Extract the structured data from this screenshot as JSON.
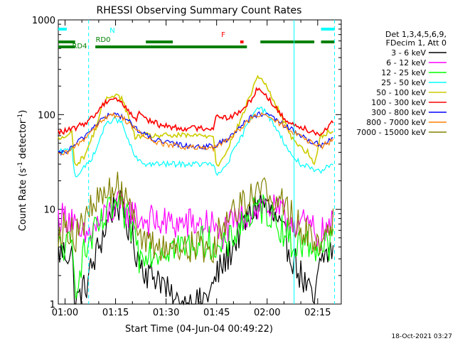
{
  "chart_data": {
    "type": "line",
    "title": "RHESSI Observing Summary Count Rates",
    "xlabel": "Start Time (04-Jun-04 00:49:22)",
    "ylabel_main": "Count Rate (s",
    "ylabel_sup1": "-1",
    "ylabel_mid": " detector",
    "ylabel_sup2": "-1",
    "ylabel_end": ")",
    "footer": "18-Oct-2021 03:27",
    "yscale": "log",
    "ylim": [
      1,
      1000
    ],
    "xlim_minutes": [
      -2,
      50
    ],
    "x_unit": "minutes after 01:00",
    "x_ticks": [
      {
        "t": 0,
        "label": "01:00"
      },
      {
        "t": 15,
        "label": "01:15"
      },
      {
        "t": 30,
        "label": "01:30"
      },
      {
        "t": 45,
        "label": "01:45"
      },
      {
        "t": 60,
        "label": "02:00"
      },
      {
        "t": 75,
        "label": "02:15"
      }
    ],
    "y_ticks": [
      {
        "v": 1,
        "label": "1"
      },
      {
        "v": 10,
        "label": "10"
      },
      {
        "v": 100,
        "label": "100"
      },
      {
        "v": 1000,
        "label": "1000"
      }
    ],
    "legend": {
      "header": [
        "Det 1,3,4,5,6,9,",
        "FDecim 1, Att 0"
      ],
      "placement": "right"
    },
    "series": [
      {
        "name": "3 - 6 keV",
        "color": "#000000",
        "points": [
          [
            -2,
            3.5
          ],
          [
            2,
            3.5
          ],
          [
            3,
            1
          ],
          [
            6,
            1.5
          ],
          [
            10,
            4
          ],
          [
            13,
            8
          ],
          [
            15,
            12
          ],
          [
            17,
            10
          ],
          [
            19,
            6
          ],
          [
            22,
            3
          ],
          [
            25,
            2
          ],
          [
            28,
            2
          ],
          [
            32,
            1
          ],
          [
            40,
            1
          ],
          [
            44,
            1.5
          ],
          [
            45,
            2
          ],
          [
            48,
            3
          ],
          [
            52,
            6
          ],
          [
            56,
            10
          ],
          [
            58,
            12
          ],
          [
            60,
            11
          ],
          [
            62,
            8
          ],
          [
            65,
            5
          ],
          [
            67,
            3.5
          ],
          [
            70,
            2
          ],
          [
            74,
            1
          ],
          [
            76,
            3
          ],
          [
            80,
            4
          ]
        ]
      },
      {
        "name": "6 - 12 keV",
        "color": "#ff00ff",
        "points": [
          [
            -2,
            8
          ],
          [
            2,
            8.5
          ],
          [
            4,
            5
          ],
          [
            6,
            5
          ],
          [
            10,
            7
          ],
          [
            13,
            9
          ],
          [
            15,
            11
          ],
          [
            17,
            10
          ],
          [
            20,
            9
          ],
          [
            22,
            8
          ],
          [
            26,
            7.5
          ],
          [
            30,
            7
          ],
          [
            36,
            7
          ],
          [
            40,
            7
          ],
          [
            44,
            7
          ],
          [
            45,
            5
          ],
          [
            48,
            6
          ],
          [
            52,
            8
          ],
          [
            56,
            10
          ],
          [
            59,
            11
          ],
          [
            62,
            9.5
          ],
          [
            66,
            8
          ],
          [
            70,
            7
          ],
          [
            73,
            6.5
          ],
          [
            75,
            5
          ],
          [
            80,
            7
          ]
        ]
      },
      {
        "name": "12 - 25 keV",
        "color": "#00ff00",
        "points": [
          [
            -2,
            4
          ],
          [
            2,
            4
          ],
          [
            3,
            1.5
          ],
          [
            5,
            3
          ],
          [
            8,
            5
          ],
          [
            11,
            7
          ],
          [
            13,
            9
          ],
          [
            15,
            11
          ],
          [
            17,
            9
          ],
          [
            19,
            7
          ],
          [
            21,
            5.5
          ],
          [
            22,
            3
          ],
          [
            24,
            4
          ],
          [
            26,
            3.5
          ],
          [
            30,
            4
          ],
          [
            36,
            4
          ],
          [
            40,
            4.5
          ],
          [
            44,
            4.5
          ],
          [
            45,
            3.5
          ],
          [
            48,
            4
          ],
          [
            52,
            7
          ],
          [
            56,
            9
          ],
          [
            59,
            10.5
          ],
          [
            62,
            8
          ],
          [
            65,
            6
          ],
          [
            68,
            4
          ],
          [
            70,
            4.5
          ],
          [
            74,
            4
          ],
          [
            76,
            4
          ],
          [
            80,
            4.5
          ]
        ]
      },
      {
        "name": "25 - 50 keV",
        "color": "#00ffff",
        "points": [
          [
            -2,
            40
          ],
          [
            1,
            42
          ],
          [
            2,
            45
          ],
          [
            3,
            22
          ],
          [
            6,
            28
          ],
          [
            9,
            40
          ],
          [
            11,
            65
          ],
          [
            13,
            85
          ],
          [
            15,
            90
          ],
          [
            17,
            80
          ],
          [
            19,
            50
          ],
          [
            21,
            35
          ],
          [
            22,
            32
          ],
          [
            24,
            30
          ],
          [
            28,
            30
          ],
          [
            34,
            30
          ],
          [
            40,
            30
          ],
          [
            44,
            30
          ],
          [
            45,
            22
          ],
          [
            48,
            30
          ],
          [
            52,
            55
          ],
          [
            55,
            90
          ],
          [
            57,
            125
          ],
          [
            59,
            110
          ],
          [
            61,
            90
          ],
          [
            64,
            60
          ],
          [
            67,
            38
          ],
          [
            70,
            30
          ],
          [
            72,
            28
          ],
          [
            74,
            25
          ],
          [
            76,
            25
          ],
          [
            78,
            28
          ],
          [
            80,
            32
          ]
        ]
      },
      {
        "name": "50 - 100 keV",
        "color": "#cccc00",
        "points": [
          [
            -2,
            55
          ],
          [
            1,
            60
          ],
          [
            2,
            65
          ],
          [
            3,
            28
          ],
          [
            6,
            38
          ],
          [
            9,
            70
          ],
          [
            11,
            120
          ],
          [
            13,
            155
          ],
          [
            15,
            165
          ],
          [
            17,
            145
          ],
          [
            19,
            90
          ],
          [
            21,
            55
          ],
          [
            22,
            60
          ],
          [
            24,
            60
          ],
          [
            28,
            60
          ],
          [
            34,
            60
          ],
          [
            40,
            60
          ],
          [
            44,
            60
          ],
          [
            45,
            28
          ],
          [
            48,
            42
          ],
          [
            52,
            85
          ],
          [
            55,
            160
          ],
          [
            57,
            250
          ],
          [
            59,
            230
          ],
          [
            61,
            160
          ],
          [
            64,
            100
          ],
          [
            67,
            60
          ],
          [
            70,
            45
          ],
          [
            72,
            40
          ],
          [
            74,
            30
          ],
          [
            76,
            60
          ],
          [
            78,
            65
          ],
          [
            80,
            70
          ]
        ]
      },
      {
        "name": "100 - 300 keV",
        "color": "#ff0000",
        "points": [
          [
            -2,
            65
          ],
          [
            1,
            68
          ],
          [
            2,
            70
          ],
          [
            3,
            72
          ],
          [
            6,
            82
          ],
          [
            9,
            100
          ],
          [
            11,
            125
          ],
          [
            13,
            145
          ],
          [
            15,
            150
          ],
          [
            17,
            130
          ],
          [
            19,
            110
          ],
          [
            21,
            85
          ],
          [
            22,
            110
          ],
          [
            24,
            90
          ],
          [
            28,
            78
          ],
          [
            34,
            72
          ],
          [
            40,
            72
          ],
          [
            44,
            72
          ],
          [
            45,
            100
          ],
          [
            48,
            92
          ],
          [
            52,
            105
          ],
          [
            55,
            140
          ],
          [
            57,
            190
          ],
          [
            59,
            170
          ],
          [
            61,
            140
          ],
          [
            64,
            100
          ],
          [
            67,
            80
          ],
          [
            70,
            75
          ],
          [
            72,
            70
          ],
          [
            74,
            65
          ],
          [
            76,
            62
          ],
          [
            78,
            75
          ],
          [
            80,
            85
          ]
        ]
      },
      {
        "name": "300 - 800 keV",
        "color": "#0000ff",
        "points": [
          [
            -2,
            38
          ],
          [
            1,
            42
          ],
          [
            3,
            48
          ],
          [
            6,
            60
          ],
          [
            9,
            78
          ],
          [
            11,
            90
          ],
          [
            13,
            98
          ],
          [
            15,
            100
          ],
          [
            17,
            95
          ],
          [
            19,
            85
          ],
          [
            21,
            72
          ],
          [
            22,
            68
          ],
          [
            24,
            60
          ],
          [
            28,
            52
          ],
          [
            34,
            48
          ],
          [
            40,
            46
          ],
          [
            44,
            46
          ],
          [
            45,
            48
          ],
          [
            48,
            55
          ],
          [
            52,
            75
          ],
          [
            55,
            92
          ],
          [
            57,
            100
          ],
          [
            59,
            100
          ],
          [
            61,
            95
          ],
          [
            64,
            82
          ],
          [
            67,
            70
          ],
          [
            70,
            60
          ],
          [
            72,
            55
          ],
          [
            74,
            50
          ],
          [
            76,
            48
          ],
          [
            78,
            52
          ],
          [
            80,
            58
          ]
        ]
      },
      {
        "name": "800 - 7000 keV",
        "color": "#ff8000",
        "points": [
          [
            -2,
            37
          ],
          [
            1,
            40
          ],
          [
            3,
            46
          ],
          [
            6,
            57
          ],
          [
            9,
            75
          ],
          [
            11,
            88
          ],
          [
            13,
            96
          ],
          [
            15,
            98
          ],
          [
            17,
            93
          ],
          [
            19,
            82
          ],
          [
            21,
            70
          ],
          [
            22,
            65
          ],
          [
            24,
            57
          ],
          [
            28,
            50
          ],
          [
            34,
            46
          ],
          [
            40,
            44
          ],
          [
            44,
            44
          ],
          [
            45,
            46
          ],
          [
            48,
            53
          ],
          [
            52,
            72
          ],
          [
            55,
            90
          ],
          [
            57,
            98
          ],
          [
            59,
            98
          ],
          [
            61,
            92
          ],
          [
            64,
            80
          ],
          [
            67,
            68
          ],
          [
            70,
            58
          ],
          [
            72,
            53
          ],
          [
            74,
            48
          ],
          [
            76,
            46
          ],
          [
            78,
            50
          ],
          [
            80,
            55
          ]
        ]
      },
      {
        "name": "7000 - 15000 keV",
        "color": "#808000",
        "points": [
          [
            -2,
            6
          ],
          [
            2,
            6.5
          ],
          [
            3,
            5
          ],
          [
            5,
            7
          ],
          [
            8,
            10
          ],
          [
            11,
            14
          ],
          [
            13,
            16
          ],
          [
            15,
            17
          ],
          [
            17,
            16
          ],
          [
            19,
            13
          ],
          [
            21,
            10
          ],
          [
            22,
            5
          ],
          [
            24,
            4
          ],
          [
            28,
            4
          ],
          [
            34,
            4
          ],
          [
            40,
            4
          ],
          [
            44,
            4
          ],
          [
            45,
            5
          ],
          [
            48,
            8
          ],
          [
            52,
            12
          ],
          [
            56,
            15
          ],
          [
            59,
            16
          ],
          [
            62,
            14
          ],
          [
            65,
            11
          ],
          [
            68,
            8
          ],
          [
            70,
            6
          ],
          [
            73,
            5
          ],
          [
            75,
            4.5
          ],
          [
            78,
            6
          ],
          [
            80,
            8
          ]
        ]
      }
    ],
    "attenuator_bars": [
      {
        "label": "N",
        "color": "#00ffff",
        "row": 1,
        "segments": [
          [
            -2,
            0.5
          ],
          [
            76,
            80
          ]
        ]
      },
      {
        "label": "RD0",
        "color": "#008000",
        "row": 2,
        "segments": [
          [
            -2,
            3
          ],
          [
            24,
            32
          ],
          [
            58,
            74
          ],
          [
            76,
            80
          ]
        ]
      },
      {
        "label": "RD4",
        "color": "#008000",
        "row": 3,
        "segments": [
          [
            -2,
            3
          ],
          [
            9,
            54
          ]
        ]
      },
      {
        "label": "F",
        "color": "#ff0000",
        "row": 2,
        "segments": [
          [
            52,
            53
          ]
        ]
      }
    ],
    "vertical_lines": [
      {
        "t": 7,
        "color": "#00ffff",
        "style": "dashed"
      },
      {
        "t": 68,
        "color": "#00ffff",
        "style": "solid"
      },
      {
        "t": 80,
        "color": "#00ffff",
        "style": "dashed"
      }
    ]
  }
}
